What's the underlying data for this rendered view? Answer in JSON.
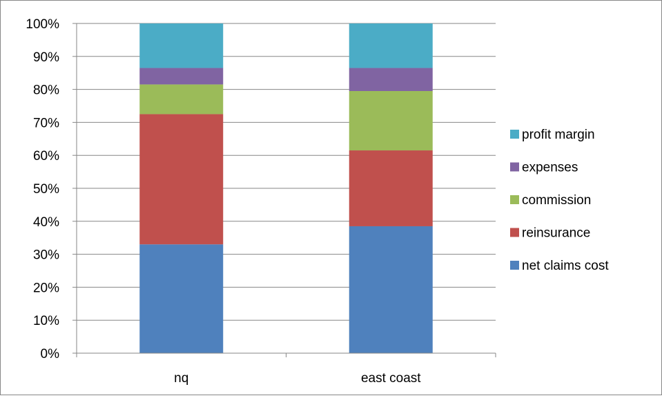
{
  "chart_data": {
    "type": "bar",
    "stacked": "percent",
    "title": "",
    "xlabel": "",
    "ylabel": "",
    "ylim": [
      0,
      100
    ],
    "y_ticks": [
      "0%",
      "10%",
      "20%",
      "30%",
      "40%",
      "50%",
      "60%",
      "70%",
      "80%",
      "90%",
      "100%"
    ],
    "categories": [
      "nq",
      "east coast"
    ],
    "grid": true,
    "legend_position": "right",
    "series": [
      {
        "name": "net claims cost",
        "color": "#4F81BD",
        "values": [
          33.0,
          38.5
        ]
      },
      {
        "name": "reinsurance",
        "color": "#C0504D",
        "values": [
          39.5,
          23.0
        ]
      },
      {
        "name": "commission",
        "color": "#9BBB59",
        "values": [
          9.0,
          18.0
        ]
      },
      {
        "name": "expenses",
        "color": "#8064A2",
        "values": [
          5.0,
          7.0
        ]
      },
      {
        "name": "profit margin",
        "color": "#4BACC6",
        "values": [
          13.5,
          13.5
        ]
      }
    ]
  }
}
